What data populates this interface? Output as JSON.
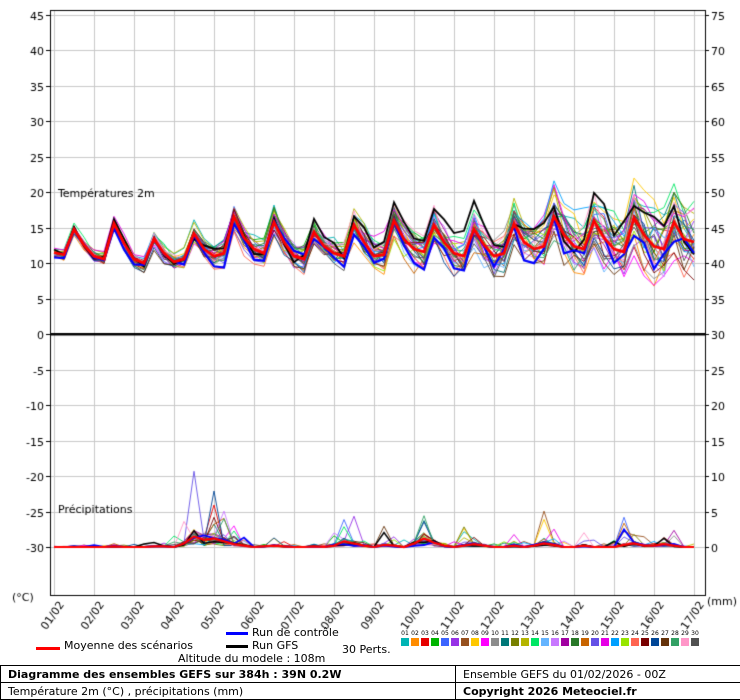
{
  "chart_data": {
    "type": "line",
    "temp_label": "Températures 2m",
    "precip_label": "Précipitations",
    "temp_axis": {
      "min": -30,
      "max": 45,
      "step": 5,
      "unit": "(°C)"
    },
    "precip_axis": {
      "min": 0,
      "max": 75,
      "step": 5,
      "unit": "(mm)"
    },
    "x_dates": [
      "01/02",
      "02/02",
      "03/02",
      "04/02",
      "05/02",
      "06/02",
      "07/02",
      "08/02",
      "09/02",
      "10/02",
      "11/02",
      "12/02",
      "13/02",
      "14/02",
      "15/02",
      "16/02",
      "17/02"
    ],
    "steps_per_day": 4,
    "mean_temp": [
      11.5,
      11.2,
      14.8,
      12.6,
      11.0,
      10.6,
      15.6,
      12.8,
      10.6,
      10.0,
      13.4,
      11.4,
      10.2,
      10.6,
      14.2,
      12.0,
      11.0,
      11.4,
      16.6,
      13.6,
      12.0,
      11.4,
      15.8,
      13.0,
      11.0,
      10.6,
      14.4,
      12.4,
      11.4,
      11.0,
      15.4,
      13.0,
      11.0,
      11.2,
      16.0,
      13.4,
      12.0,
      11.6,
      15.4,
      13.0,
      11.4,
      11.0,
      14.8,
      12.6,
      11.0,
      11.4,
      15.6,
      13.0,
      12.0,
      12.4,
      16.6,
      14.0,
      12.4,
      12.0,
      16.0,
      13.6,
      12.0,
      11.6,
      16.4,
      14.0,
      12.4,
      12.0,
      15.8,
      13.4,
      13.0
    ],
    "temp_spread": [
      0.8,
      0.8,
      0.8,
      0.9,
      1.0,
      1.0,
      1.0,
      1.1,
      1.2,
      1.2,
      1.3,
      1.4,
      1.6,
      1.6,
      1.7,
      1.8,
      2.0,
      2.0,
      2.1,
      2.1,
      2.2,
      2.2,
      2.3,
      2.3,
      2.4,
      2.4,
      2.5,
      2.5,
      2.6,
      2.6,
      2.7,
      2.7,
      2.8,
      2.8,
      2.9,
      2.9,
      3.0,
      3.1,
      3.2,
      3.3,
      3.4,
      3.5,
      3.6,
      3.7,
      3.8,
      3.9,
      4.0,
      4.1,
      4.2,
      4.3,
      4.4,
      4.5,
      4.6,
      4.7,
      4.8,
      4.9,
      5.0,
      5.1,
      5.2,
      5.3,
      5.5,
      5.6,
      5.7,
      5.8,
      6.0
    ],
    "mean_precip": [
      0,
      0,
      0,
      0,
      0,
      0,
      0.1,
      0,
      0,
      0,
      0.1,
      0.1,
      0,
      0.5,
      1.5,
      1.0,
      1.2,
      0.8,
      0.4,
      0.2,
      0,
      0.1,
      0.2,
      0.1,
      0,
      0,
      0.1,
      0,
      0.2,
      0.8,
      0.5,
      0.2,
      0,
      0.3,
      0.2,
      0,
      0.5,
      1.2,
      0.6,
      0.2,
      0,
      0.2,
      0.4,
      0.2,
      0,
      0,
      0.2,
      0,
      0.2,
      0.5,
      0.3,
      0,
      0,
      0.2,
      0,
      0,
      0,
      0.3,
      0.5,
      0.2,
      0.2,
      0.4,
      0.2,
      0,
      0
    ],
    "precip_max": [
      0.3,
      0.3,
      0.3,
      0.3,
      0.3,
      0.3,
      0.5,
      0.4,
      0.4,
      0.5,
      0.6,
      0.6,
      2,
      6,
      10,
      8,
      8,
      5,
      3,
      2,
      1,
      1.5,
      2,
      1,
      0.5,
      1,
      1.5,
      1,
      2,
      7.5,
      4,
      2,
      1,
      4,
      3,
      1.5,
      2,
      5,
      4,
      2,
      1,
      3,
      2.5,
      1.5,
      0.5,
      1,
      2,
      1,
      1,
      5,
      3,
      1,
      0.5,
      2,
      1,
      0.5,
      1,
      4,
      5,
      2,
      1.5,
      4,
      2.5,
      1,
      0.5
    ],
    "colors": {
      "mean": "#ff0000",
      "control": "#0000ff",
      "gfs": "#000000",
      "grid": "#c8c8c8",
      "zero_line": "#000000"
    },
    "members": [
      {
        "id": "01",
        "color": "#00b4b4"
      },
      {
        "id": "02",
        "color": "#ff8c00"
      },
      {
        "id": "03",
        "color": "#e60000"
      },
      {
        "id": "04",
        "color": "#00b400"
      },
      {
        "id": "05",
        "color": "#3c64ff"
      },
      {
        "id": "06",
        "color": "#9632e6"
      },
      {
        "id": "07",
        "color": "#96501e"
      },
      {
        "id": "08",
        "color": "#ffc800"
      },
      {
        "id": "09",
        "color": "#ff00ff"
      },
      {
        "id": "10",
        "color": "#8c8c8c"
      },
      {
        "id": "11",
        "color": "#007878"
      },
      {
        "id": "12",
        "color": "#788000"
      },
      {
        "id": "13",
        "color": "#b4b400"
      },
      {
        "id": "14",
        "color": "#00e664"
      },
      {
        "id": "15",
        "color": "#64b4ff"
      },
      {
        "id": "16",
        "color": "#c878ff"
      },
      {
        "id": "17",
        "color": "#a000a0"
      },
      {
        "id": "18",
        "color": "#287828"
      },
      {
        "id": "19",
        "color": "#c86400"
      },
      {
        "id": "20",
        "color": "#6450e6"
      },
      {
        "id": "21",
        "color": "#e600e6"
      },
      {
        "id": "22",
        "color": "#00a0ff"
      },
      {
        "id": "23",
        "color": "#96e600"
      },
      {
        "id": "24",
        "color": "#ff6450"
      },
      {
        "id": "25",
        "color": "#780000"
      },
      {
        "id": "26",
        "color": "#004696"
      },
      {
        "id": "27",
        "color": "#64320a"
      },
      {
        "id": "28",
        "color": "#32a064"
      },
      {
        "id": "29",
        "color": "#ff96c8"
      },
      {
        "id": "30",
        "color": "#505050"
      }
    ]
  },
  "legend": {
    "mean_label": "Moyenne des scénarios",
    "control_label": "Run de contrôle",
    "gfs_label": "Run GFS",
    "perts_label": "30 Perts.",
    "altitude_label": "Altitude du modele : 108m"
  },
  "footer": {
    "title": "Diagramme des ensembles GEFS sur 384h : 39N 0.2W",
    "subtitle": "Température 2m (°C) , précipitations (mm)",
    "run_info": "Ensemble GEFS du 01/02/2026 - 00Z",
    "copyright": "Copyright 2026 Meteociel.fr"
  }
}
